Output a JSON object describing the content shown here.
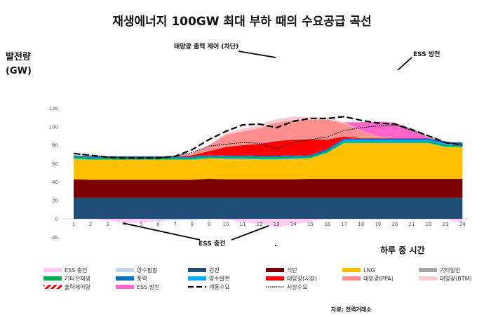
{
  "chart_data": {
    "type": "area",
    "title": "재생에너지 100GW 최대 부하 때의 수요공급 곡선",
    "ylabel_line1": "발전량",
    "ylabel_line2": "(GW)",
    "xlabel": "하루 중 시간",
    "source": "자료: 전력거래소",
    "annotations": {
      "curtail": "태양광 출력 제어 (차단)",
      "ess_discharge": "ESS 방전",
      "ess_charge": "ESS 충전"
    },
    "ylim": [
      -20,
      120
    ],
    "yticks": [
      -20,
      0,
      20,
      40,
      60,
      80,
      100,
      120
    ],
    "categories": [
      "1",
      "2",
      "3",
      "4",
      "5",
      "6",
      "7",
      "8",
      "9",
      "10",
      "11",
      "12",
      "13",
      "14",
      "15",
      "16",
      "17",
      "18",
      "19",
      "20",
      "21",
      "22",
      "23",
      "24"
    ],
    "series": [
      {
        "name": "원전",
        "color": "#1f4e79",
        "values": [
          23,
          23,
          23,
          23,
          23,
          23,
          23,
          23,
          23,
          23,
          23,
          23,
          23,
          23,
          23,
          23,
          23,
          23,
          23,
          23,
          23,
          23,
          23,
          23
        ]
      },
      {
        "name": "석탄",
        "color": "#7b0000",
        "values": [
          20,
          19.5,
          19.5,
          19.5,
          19.5,
          19.5,
          19.5,
          19.5,
          20.5,
          20,
          20,
          20,
          20,
          20,
          20.5,
          20.5,
          20.5,
          20.5,
          20.5,
          20.5,
          20.5,
          20.5,
          20.5,
          20.5
        ]
      },
      {
        "name": "LNG",
        "color": "#ffc000",
        "values": [
          22,
          21.5,
          21.5,
          21.5,
          21.5,
          21.5,
          21.5,
          21.5,
          22,
          22,
          22,
          21.5,
          21.5,
          22,
          22,
          28,
          38.5,
          38.5,
          38.5,
          38.5,
          38.5,
          38.5,
          34.5,
          34
        ]
      },
      {
        "name": "기타일반",
        "color": "#a5a5a5",
        "values": [
          0.5,
          0.5,
          0.5,
          0.5,
          0.5,
          0.5,
          0.5,
          0.5,
          0.5,
          0.5,
          0.5,
          0.5,
          0.5,
          0.5,
          0.5,
          0.5,
          0.5,
          0.5,
          0.5,
          0.5,
          0.5,
          0.5,
          0.5,
          0.5
        ]
      },
      {
        "name": "기타신재생",
        "color": "#00b050",
        "values": [
          2,
          2,
          2,
          2,
          2,
          2,
          2,
          2,
          2,
          2,
          2,
          2,
          2,
          2,
          2,
          2,
          2,
          2,
          2,
          2,
          2,
          2,
          2,
          2
        ]
      },
      {
        "name": "양수발전",
        "color": "#00b0f0",
        "values": [
          0,
          0,
          0,
          0,
          0,
          0,
          0,
          0,
          0,
          0,
          0,
          0,
          0,
          0,
          0,
          0,
          1,
          1,
          1,
          1,
          1,
          1,
          1,
          1
        ]
      },
      {
        "name": "풍력",
        "color": "#0070c0",
        "values": [
          1.5,
          1.5,
          1.5,
          1.5,
          1.5,
          1.5,
          1.5,
          1.5,
          1.5,
          1.5,
          1.5,
          1.5,
          1.5,
          1.5,
          1.5,
          2,
          2,
          2,
          2,
          2,
          2,
          2,
          2,
          2
        ]
      },
      {
        "name": "태양광(시장)",
        "color": "#ff0000",
        "values": [
          0,
          0,
          0,
          0,
          0,
          0,
          0,
          1,
          4,
          9,
          11,
          13,
          16,
          17,
          17,
          10,
          2,
          0,
          0,
          0,
          0,
          0,
          0,
          0
        ]
      },
      {
        "name": "태양광(PPA)",
        "color": "#ff8f8f",
        "values": [
          0,
          0,
          0,
          0,
          0,
          0,
          0,
          2,
          6,
          13,
          15,
          17,
          20,
          21,
          21,
          22,
          14,
          8,
          2,
          0,
          0,
          0,
          0,
          0
        ]
      },
      {
        "name": "태양광(BTM)",
        "color": "#ffc7ce",
        "values": [
          0,
          0,
          0,
          0,
          0,
          0,
          0,
          0.5,
          1,
          2,
          3,
          4,
          4,
          4,
          3.5,
          2.5,
          1.5,
          0.5,
          0,
          0,
          0,
          0,
          0,
          0
        ]
      },
      {
        "name": "ESS 방전",
        "color": "#ff66cc",
        "values": [
          0,
          0,
          0,
          0,
          0,
          0,
          0,
          0,
          0,
          0,
          0,
          0,
          0,
          0,
          0,
          0,
          0,
          9,
          16,
          17,
          10,
          1,
          0,
          0
        ]
      }
    ],
    "ess_charge": {
      "name": "ESS 충전",
      "color": "#ffc6f0",
      "values": [
        0,
        0,
        -2,
        -4,
        -4,
        -3,
        -1,
        0,
        0,
        -1,
        -3,
        -5,
        -9,
        -6,
        -3,
        0,
        0,
        0,
        0,
        0,
        0,
        0,
        0,
        -5
      ]
    },
    "pumped_storage": {
      "name": "양수펌핑",
      "color": "#bdd7ee",
      "values": [
        0,
        0,
        0,
        0,
        0,
        -1,
        -2,
        -1,
        0,
        0,
        0,
        0,
        0,
        0,
        0,
        0,
        0,
        0,
        0,
        0,
        0,
        0,
        0,
        0
      ]
    },
    "grid_demand": {
      "name": "계통수요",
      "values": [
        71,
        69,
        67,
        66,
        66,
        66,
        68,
        75,
        86,
        95,
        102,
        103,
        99,
        106,
        109,
        109,
        111,
        107,
        104,
        103,
        97,
        90,
        83,
        80
      ]
    },
    "market_demand": {
      "name": "시장수요",
      "values": [
        71,
        69,
        67,
        66,
        66,
        66,
        68,
        72,
        79,
        81,
        83,
        82,
        76,
        83,
        86,
        89,
        96,
        99,
        101,
        102,
        96,
        90,
        83,
        80
      ]
    },
    "curtail_label": "출력제어량",
    "legend": [
      "ESS 충전",
      "양수펌핑",
      "원전",
      "석탄",
      "LNG",
      "기타일반",
      "기타신재생",
      "풍력",
      "양수발전",
      "태양광(시장)",
      "태양광(PPA)",
      "태양광(BTM)",
      "출력제어량",
      "ESS 방전",
      "계통수요",
      "시장수요"
    ]
  }
}
